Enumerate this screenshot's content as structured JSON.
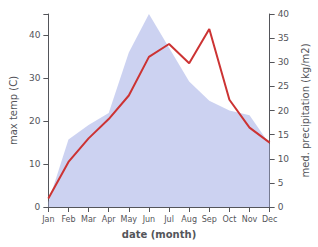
{
  "chart_data": {
    "type": "line",
    "categories": [
      "Jan",
      "Feb",
      "Mar",
      "Apr",
      "May",
      "Jun",
      "Jul",
      "Aug",
      "Sep",
      "Oct",
      "Nov",
      "Dec"
    ],
    "series": [
      {
        "type": "line",
        "color": "#cc3333",
        "values": [
          2.0,
          10.5,
          16.0,
          20.5,
          26.0,
          35.0,
          38.0,
          33.5,
          41.5,
          25.0,
          18.5,
          15.0
        ]
      },
      {
        "type": "area",
        "axis": "y2",
        "color": "#aab4e8",
        "values": [
          1.0,
          14.0,
          17.0,
          19.5,
          32.0,
          40.0,
          33.0,
          26.0,
          22.0,
          20.0,
          19.0,
          13.0
        ]
      }
    ],
    "xlabel": "date (month)",
    "ylabel": "max temp (C)",
    "y2label": "med. precipitation (kg/m2)",
    "ylim": [
      0,
      45
    ],
    "yticks": [
      0,
      10,
      20,
      30,
      40
    ],
    "y2lim": [
      0,
      40
    ],
    "y2ticks": [
      0,
      5,
      10,
      15,
      20,
      25,
      30,
      35,
      40
    ],
    "grid": false
  }
}
